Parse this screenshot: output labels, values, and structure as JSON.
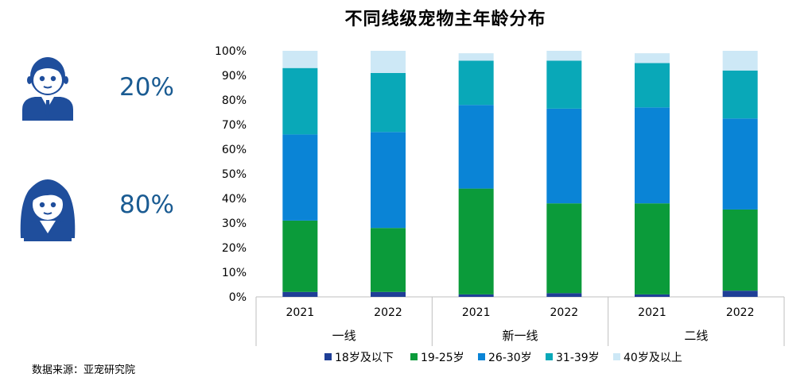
{
  "chart_data": {
    "type": "bar",
    "stacked": true,
    "percent": true,
    "title": "不同线级宠物主年龄分布",
    "categories": [
      "2021",
      "2022",
      "2021",
      "2022",
      "2021",
      "2022"
    ],
    "groups": [
      {
        "label": "一线",
        "span": 2
      },
      {
        "label": "新一线",
        "span": 2
      },
      {
        "label": "二线",
        "span": 2
      }
    ],
    "ylim": [
      0,
      100
    ],
    "yticks": [
      "0%",
      "10%",
      "20%",
      "30%",
      "40%",
      "50%",
      "60%",
      "70%",
      "80%",
      "90%",
      "100%"
    ],
    "grid": false,
    "legend_position": "bottom",
    "series": [
      {
        "name": "18岁及以下",
        "color": "#1f3e96",
        "values": [
          2,
          2,
          1,
          1.5,
          1,
          2.5
        ]
      },
      {
        "name": "19-25岁",
        "color": "#0b9b3a",
        "values": [
          29,
          26,
          43,
          36.5,
          37,
          33
        ]
      },
      {
        "name": "26-30岁",
        "color": "#0a84d6",
        "values": [
          35,
          39,
          34,
          38.5,
          39,
          37
        ]
      },
      {
        "name": "31-39岁",
        "color": "#09a8b8",
        "values": [
          27,
          24,
          18,
          19.5,
          18,
          19.5
        ]
      },
      {
        "name": "40岁及以上",
        "color": "#cde8f6",
        "values": [
          7,
          9,
          3,
          4,
          4,
          8
        ]
      }
    ]
  },
  "gender_stats": {
    "male_percent": "20%",
    "female_percent": "80%"
  },
  "source": "数据来源：亚宠研究院"
}
